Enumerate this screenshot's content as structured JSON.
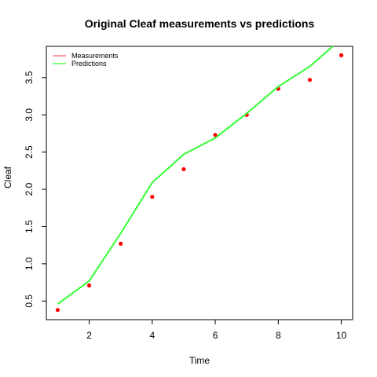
{
  "chart_data": {
    "type": "scatter",
    "title": "Original Cleaf measurements vs predictions",
    "xlabel": "Time",
    "ylabel": "Cleaf",
    "xlim": [
      0.64,
      10.36
    ],
    "ylim": [
      0.25,
      3.92
    ],
    "x_ticks": [
      2,
      4,
      6,
      8,
      10
    ],
    "y_ticks": [
      0.5,
      1.0,
      1.5,
      2.0,
      2.5,
      3.0,
      3.5
    ],
    "y_tick_labels": [
      "0.5",
      "1.0",
      "1.5",
      "2.0",
      "2.5",
      "3.0",
      "3.5"
    ],
    "grid": false,
    "legend_position": "top-left",
    "series": [
      {
        "name": "Measurements",
        "kind": "points",
        "color": "#ff0000",
        "legend_color": "#ff6666",
        "x": [
          1,
          2,
          3,
          4,
          5,
          6,
          7,
          8,
          9,
          10
        ],
        "y": [
          0.38,
          0.71,
          1.27,
          1.9,
          2.27,
          2.73,
          3.0,
          3.35,
          3.47,
          3.8
        ]
      },
      {
        "name": "Predictions",
        "kind": "line",
        "color": "#33ff33",
        "x": [
          1,
          2,
          3,
          4,
          5,
          6,
          7,
          8,
          9,
          10
        ],
        "y": [
          0.46,
          0.77,
          1.41,
          2.09,
          2.47,
          2.69,
          3.02,
          3.38,
          3.65,
          4.02
        ]
      }
    ]
  }
}
